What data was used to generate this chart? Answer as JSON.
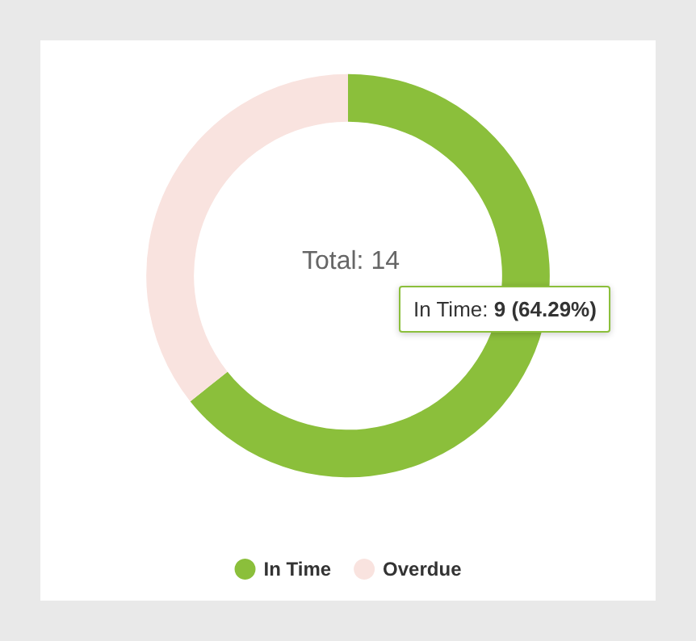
{
  "chart_data": {
    "type": "donut",
    "categories": [
      "In Time",
      "Overdue"
    ],
    "values": [
      64.29,
      35.71
    ],
    "colors": [
      "#8bbf3b",
      "#f9e3df"
    ],
    "legend": "bottom",
    "annotations": [
      "Total: 14",
      "In Time: 9 (64.29%)"
    ]
  }
}
